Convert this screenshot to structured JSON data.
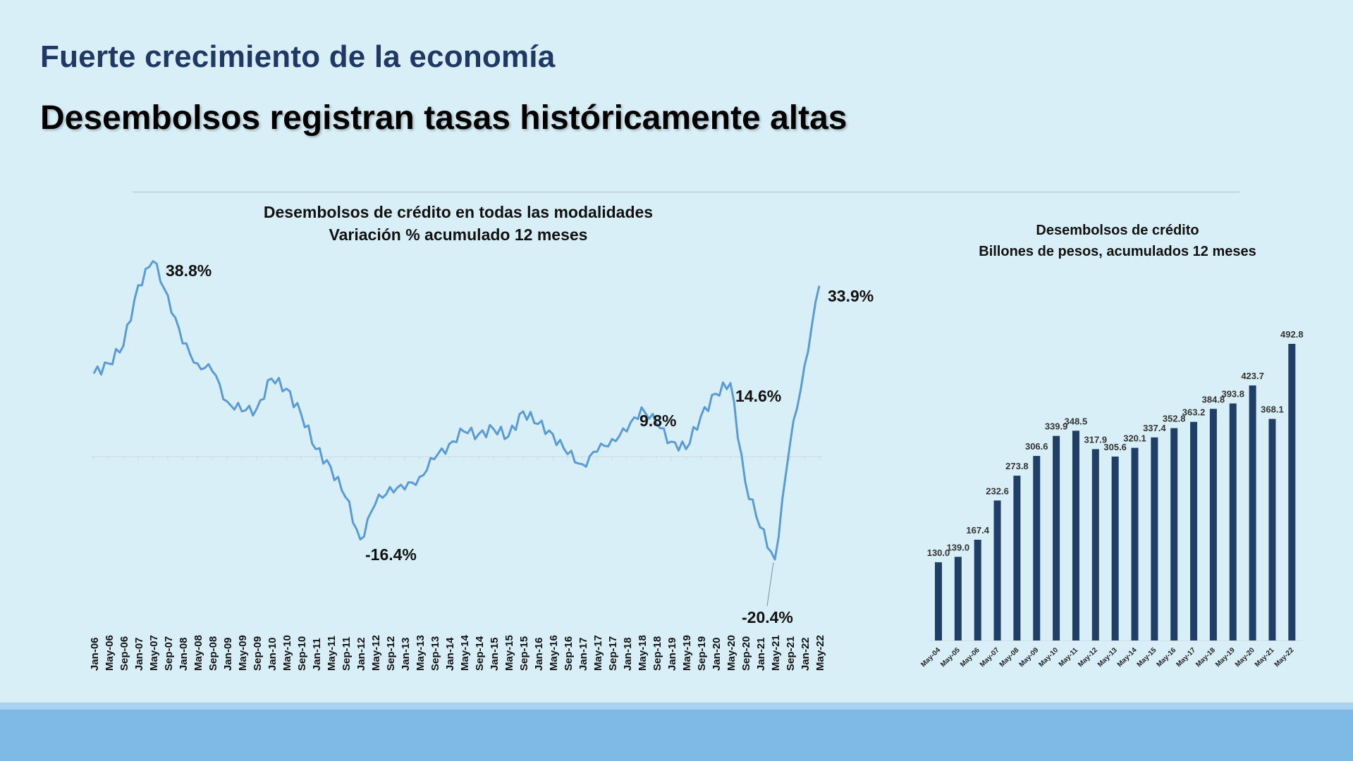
{
  "slide": {
    "title": "Fuerte crecimiento de la economía",
    "subtitle": "Desembolsos registran tasas históricamente altas"
  },
  "colors": {
    "background": "#d8eff7",
    "title": "#1f3864",
    "line": "#5b9bd5",
    "bars": "#1f3f66",
    "footer": "#7fb9e5"
  },
  "chart_data": [
    {
      "type": "line",
      "title": "Desembolsos de crédito en todas las modalidades",
      "subtitle": "Variación  %  acumulado 12 meses",
      "xlabel": "",
      "ylabel": "",
      "x_tick_labels": [
        "Jan-06",
        "May-06",
        "Sep-06",
        "Jan-07",
        "May-07",
        "Sep-07",
        "Jan-08",
        "May-08",
        "Sep-08",
        "Jan-09",
        "May-09",
        "Sep-09",
        "Jan-10",
        "May-10",
        "Sep-10",
        "Jan-11",
        "May-11",
        "Sep-11",
        "Jan-12",
        "May-12",
        "Sep-12",
        "Jan-13",
        "May-13",
        "Sep-13",
        "Jan-14",
        "May-14",
        "Sep-14",
        "Jan-15",
        "May-15",
        "Sep-15",
        "Jan-16",
        "May-16",
        "Sep-16",
        "Jan-17",
        "May-17",
        "Sep-17",
        "Jan-18",
        "May-18",
        "Sep-18",
        "Jan-19",
        "May-19",
        "Sep-19",
        "Jan-20",
        "May-20",
        "Sep-20",
        "Jan-21",
        "May-21",
        "Sep-21",
        "Jan-22",
        "May-22"
      ],
      "x": [
        "Jan-06",
        "May-06",
        "Sep-06",
        "Jan-07",
        "May-07",
        "Sep-07",
        "Jan-08",
        "May-08",
        "Sep-08",
        "Jan-09",
        "May-09",
        "Sep-09",
        "Jan-10",
        "May-10",
        "Sep-10",
        "Jan-11",
        "May-11",
        "Sep-11",
        "Jan-12",
        "May-12",
        "Sep-12",
        "Jan-13",
        "May-13",
        "Sep-13",
        "Jan-14",
        "May-14",
        "Sep-14",
        "Jan-15",
        "May-15",
        "Sep-15",
        "Jan-16",
        "May-16",
        "Sep-16",
        "Jan-17",
        "May-17",
        "Sep-17",
        "Jan-18",
        "May-18",
        "Sep-18",
        "Jan-19",
        "May-19",
        "Sep-19",
        "Jan-20",
        "May-20",
        "Sep-20",
        "Jan-21",
        "May-21",
        "Sep-21",
        "Jan-22",
        "May-22"
      ],
      "series": [
        {
          "values": [
            16.5,
            18.5,
            22.0,
            34.0,
            38.8,
            32.0,
            22.5,
            18.5,
            17.0,
            11.0,
            9.0,
            9.5,
            15.5,
            13.5,
            8.5,
            1.5,
            -2.0,
            -8.0,
            -16.4,
            -9.5,
            -6.0,
            -6.5,
            -4.0,
            -0.5,
            2.5,
            5.0,
            4.5,
            5.5,
            4.0,
            9.0,
            6.5,
            4.5,
            0.5,
            -1.5,
            1.0,
            3.5,
            5.0,
            9.8,
            6.5,
            3.0,
            1.5,
            8.0,
            12.5,
            14.6,
            -5.0,
            -14.0,
            -20.4,
            2.0,
            18.0,
            33.9
          ]
        }
      ],
      "ylim": [
        -25,
        40
      ],
      "annotations": [
        "38.8%",
        "-16.4%",
        "9.8%",
        "14.6%",
        "-20.4%",
        "33.9%"
      ],
      "annotation_points": [
        {
          "label": "38.8%",
          "x": "May-07",
          "y": 38.8
        },
        {
          "label": "-16.4%",
          "x": "Jan-12",
          "y": -16.4
        },
        {
          "label": "9.8%",
          "x": "May-18",
          "y": 9.8
        },
        {
          "label": "14.6%",
          "x": "May-20",
          "y": 14.6
        },
        {
          "label": "-20.4%",
          "x": "May-21",
          "y": -20.4
        },
        {
          "label": "33.9%",
          "x": "May-22",
          "y": 33.9
        }
      ],
      "grid": false
    },
    {
      "type": "bar",
      "title": "Desembolsos de crédito",
      "subtitle": "Billones de pesos, acumulados 12 meses",
      "categories": [
        "May-04",
        "May-05",
        "May-06",
        "May-07",
        "May-08",
        "May-09",
        "May-10",
        "May-11",
        "May-12",
        "May-13",
        "May-14",
        "May-15",
        "May-16",
        "May-17",
        "May-18",
        "May-19",
        "May-20",
        "May-21",
        "May-22"
      ],
      "values": [
        130.0,
        139.0,
        167.4,
        232.6,
        273.8,
        306.6,
        339.9,
        348.5,
        317.9,
        305.6,
        320.1,
        337.4,
        352.8,
        363.2,
        384.8,
        393.8,
        423.7,
        368.1,
        492.8
      ],
      "value_labels": [
        "130.0",
        "139.0",
        "167.4",
        "232.6",
        "273.8",
        "306.6",
        "339.9",
        "348.5",
        "317.9",
        "305.6",
        "320.1",
        "337.4",
        "352.8",
        "363.2",
        "384.8",
        "393.8",
        "423.7",
        "368.1",
        "492.8"
      ],
      "ylim": [
        0,
        500
      ],
      "grid": false
    }
  ]
}
